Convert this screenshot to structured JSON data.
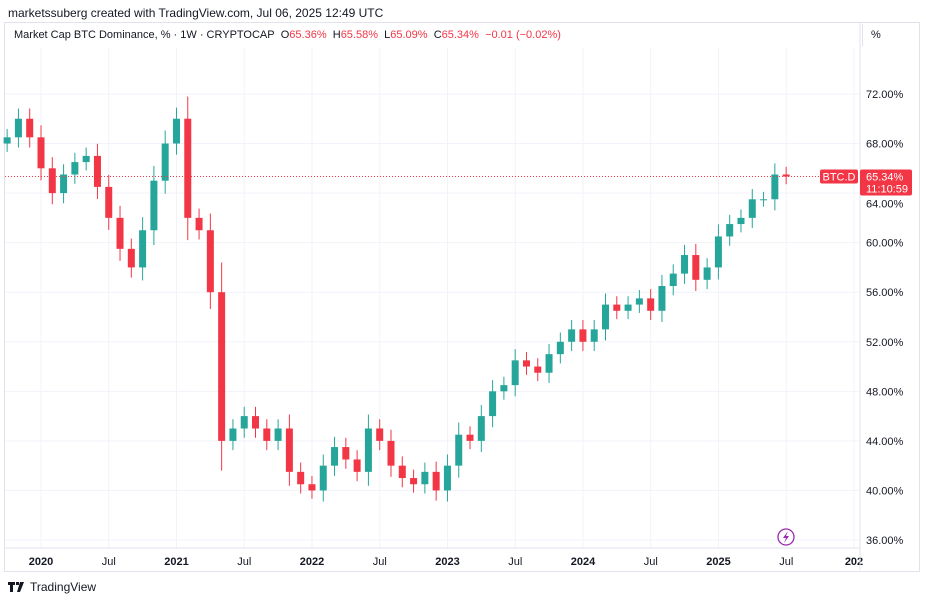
{
  "credit": "marketssuberg created with TradingView.com, Jul 06, 2025 12:49 UTC",
  "legend": {
    "title": "Market Cap BTC Dominance, % · 1W · CRYPTOCAP",
    "o_label": "O",
    "o": "65.36%",
    "h_label": "H",
    "h": "65.58%",
    "l_label": "L",
    "l": "65.09%",
    "c_label": "C",
    "c": "65.34%",
    "change": "−0.01 (−0.02%)"
  },
  "unit_button": "%",
  "footer": {
    "brand": "TradingView"
  },
  "colors": {
    "up": "#26a69a",
    "down": "#f23645",
    "grid": "#f0f3fa"
  },
  "chart_data": {
    "type": "candlestick",
    "symbol_label": "BTC.D",
    "last_price_label": "65.34%",
    "countdown": "11:10:59",
    "ylim": [
      35,
      75.5
    ],
    "y_ticks": [
      "72.00%",
      "68.00%",
      "64.00%",
      "60.00%",
      "56.00%",
      "52.00%",
      "48.00%",
      "44.00%",
      "40.00%",
      "36.00%"
    ],
    "y_tick_values": [
      72,
      68,
      64,
      60,
      56,
      52,
      48,
      44,
      40,
      36
    ],
    "x_ticks": [
      {
        "label": "2020",
        "date": "2020-01",
        "bold": true
      },
      {
        "label": "Jul",
        "date": "2020-07"
      },
      {
        "label": "2021",
        "date": "2021-01",
        "bold": true
      },
      {
        "label": "Jul",
        "date": "2021-07"
      },
      {
        "label": "2022",
        "date": "2022-01",
        "bold": true
      },
      {
        "label": "Jul",
        "date": "2022-07"
      },
      {
        "label": "2023",
        "date": "2023-01",
        "bold": true
      },
      {
        "label": "Jul",
        "date": "2023-07"
      },
      {
        "label": "2024",
        "date": "2024-01",
        "bold": true
      },
      {
        "label": "Jul",
        "date": "2024-07"
      },
      {
        "label": "2025",
        "date": "2025-01",
        "bold": true
      },
      {
        "label": "Jul",
        "date": "2025-07"
      },
      {
        "label": "202",
        "date": "2026-01",
        "bold": true
      }
    ],
    "start": "2019-10",
    "closes": [
      68.5,
      70,
      68.5,
      66,
      64,
      65.5,
      66.5,
      67,
      64.5,
      62,
      59.5,
      58,
      61,
      65,
      68,
      70,
      62,
      61,
      56,
      44,
      45,
      46,
      45,
      44,
      45,
      41.5,
      40.5,
      40,
      42,
      43.5,
      42.5,
      41.5,
      45,
      44,
      42,
      41,
      40.5,
      41.5,
      40,
      42,
      44.5,
      44,
      46,
      48,
      48.5,
      50.5,
      50,
      49.5,
      51,
      52,
      53,
      52,
      53,
      55,
      54.5,
      55,
      55.5,
      54.5,
      56.5,
      57.5,
      59,
      57,
      58,
      60.5,
      61.5,
      62,
      63.5,
      63.5,
      65.5,
      65.34
    ],
    "grid": true
  }
}
